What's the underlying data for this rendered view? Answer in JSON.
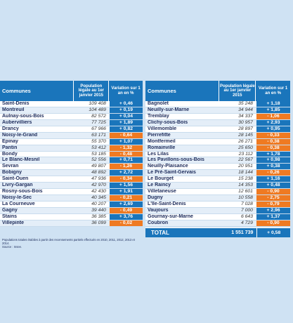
{
  "header": {
    "communes": "Communes",
    "population": "Population légale au 1er janvier 2015",
    "variation": "Variation sur 1 an en %"
  },
  "left_rows": [
    {
      "name": "Saint-Denis",
      "pop": "109 408",
      "var": "+ 0,46",
      "sign": "pos"
    },
    {
      "name": "Montreuil",
      "pop": "104 489",
      "var": "+ 0,19",
      "sign": "pos"
    },
    {
      "name": "Aulnay-sous-Bois",
      "pop": "82 572",
      "var": "+ 0,04",
      "sign": "pos"
    },
    {
      "name": "Aubervilliers",
      "pop": "77 725",
      "var": "+ 1,89",
      "sign": "pos"
    },
    {
      "name": "Drancy",
      "pop": "67 966",
      "var": "+ 0,82",
      "sign": "pos"
    },
    {
      "name": "Noisy-le-Grand",
      "pop": "63 171",
      "var": "- 0,64",
      "sign": "neg"
    },
    {
      "name": "Epinay",
      "pop": "55 370",
      "var": "+ 1,07",
      "sign": "pos"
    },
    {
      "name": "Pantin",
      "pop": "53 412",
      "var": "- 1,32",
      "sign": "neg"
    },
    {
      "name": "Bondy",
      "pop": "53 185",
      "var": "- 0,48",
      "sign": "neg"
    },
    {
      "name": "Le Blanc-Mesnil",
      "pop": "52 556",
      "var": "+ 0,71",
      "sign": "pos"
    },
    {
      "name": "Sevran",
      "pop": "49 807",
      "var": "- 1,26",
      "sign": "neg"
    },
    {
      "name": "Bobigny",
      "pop": "48 892",
      "var": "+ 2,72",
      "sign": "pos"
    },
    {
      "name": "Saint-Ouen",
      "pop": "47 936",
      "var": "- 0,34",
      "sign": "neg"
    },
    {
      "name": "Livry-Gargan",
      "pop": "42 970",
      "var": "+ 1,56",
      "sign": "pos"
    },
    {
      "name": "Rosny-sous-Bois",
      "pop": "42 430",
      "var": "+ 1,91",
      "sign": "pos"
    },
    {
      "name": "Noisy-le-Sec",
      "pop": "40 345",
      "var": "- 0,21",
      "sign": "neg"
    },
    {
      "name": "La Courneuve",
      "pop": "40 207",
      "var": "+ 2,69",
      "sign": "pos"
    },
    {
      "name": "Gagny",
      "pop": "39 440",
      "var": "- 0,49",
      "sign": "neg"
    },
    {
      "name": "Stains",
      "pop": "36 385",
      "var": "+ 3,76",
      "sign": "pos"
    },
    {
      "name": "Villepinte",
      "pop": "36 099",
      "var": "- 0,02",
      "sign": "neg"
    }
  ],
  "right_rows": [
    {
      "name": "Bagnolet",
      "pop": "35 248",
      "var": "+ 1,18",
      "sign": "pos"
    },
    {
      "name": "Neuilly-sur-Marne",
      "pop": "34 944",
      "var": "+ 1,85",
      "sign": "pos"
    },
    {
      "name": "Tremblay",
      "pop": "34 337",
      "var": "- 1,06",
      "sign": "neg"
    },
    {
      "name": "Clichy-sous-Bois",
      "pop": "30 957",
      "var": "+ 2,93",
      "sign": "pos"
    },
    {
      "name": "Villemomble",
      "pop": "28 897",
      "var": "+ 0,95",
      "sign": "pos"
    },
    {
      "name": "Pierrefitte",
      "pop": "28 145",
      "var": "- 0,33",
      "sign": "neg"
    },
    {
      "name": "Montfermeil",
      "pop": "26 271",
      "var": "- 0,38",
      "sign": "neg"
    },
    {
      "name": "Romainville",
      "pop": "25 650",
      "var": "- 0,38",
      "sign": "neg"
    },
    {
      "name": "Les Lilas",
      "pop": "23 112",
      "var": "+ 1,78",
      "sign": "pos"
    },
    {
      "name": "Les Pavillons-sous-Bois",
      "pop": "22 567",
      "var": "+ 0,98",
      "sign": "pos"
    },
    {
      "name": "Neuilly-Plaisance",
      "pop": "20 951",
      "var": "+ 0,38",
      "sign": "pos"
    },
    {
      "name": "Le Pré-Saint-Gervais",
      "pop": "18 144",
      "var": "- 0,26",
      "sign": "neg"
    },
    {
      "name": "Le Bourget",
      "pop": "15 238",
      "var": "+ 1,16",
      "sign": "pos"
    },
    {
      "name": "Le Raincy",
      "pop": "14 353",
      "var": "+ 0,48",
      "sign": "pos"
    },
    {
      "name": "Villetaneuse",
      "pop": "12 601",
      "var": "- 0,90",
      "sign": "neg"
    },
    {
      "name": "Dugny",
      "pop": "10 558",
      "var": "- 2,75",
      "sign": "neg"
    },
    {
      "name": "L'Île-Saint-Denis",
      "pop": "7 028",
      "var": "- 0,79",
      "sign": "neg"
    },
    {
      "name": "Vaujours",
      "pop": "7 000",
      "var": "+ 2,96",
      "sign": "pos"
    },
    {
      "name": "Gournay-sur-Marne",
      "pop": "6 643",
      "var": "+ 1,37",
      "sign": "pos"
    },
    {
      "name": "Coubron",
      "pop": "4 729",
      "var": "- 0,90",
      "sign": "neg"
    }
  ],
  "total": {
    "label": "TOTAL",
    "pop": "1 551 739",
    "var": "+ 0,58",
    "sign": "pos"
  },
  "note": {
    "line1": "Populations totales établies à partir des recensements partiels effectués en 2010, 2011, 2012, 2013 et 2014.",
    "line2": "Source : Insee."
  },
  "colors": {
    "positive": "#1a75bb",
    "negative": "#ef7a22",
    "header": "#1a75bb",
    "background": "#cfe2f3"
  }
}
